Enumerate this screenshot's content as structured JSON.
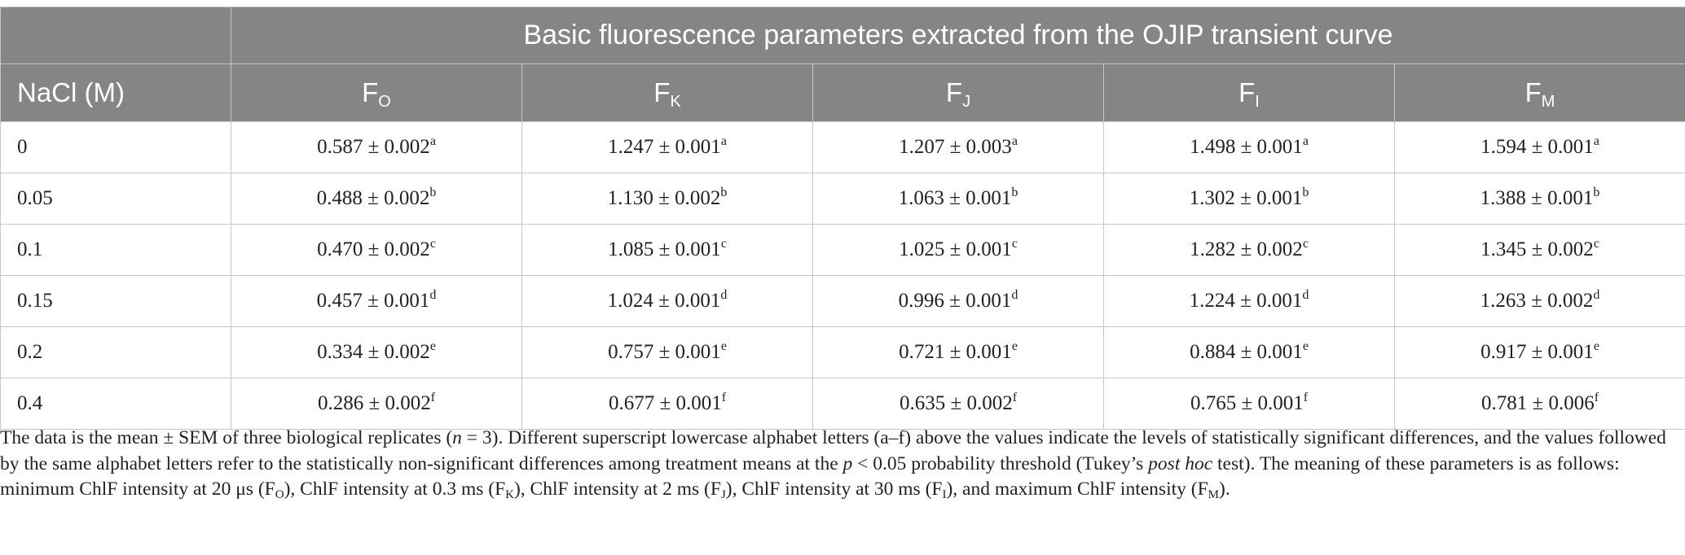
{
  "table": {
    "group_header": "Basic fluorescence parameters extracted from the OJIP transient curve",
    "columns": [
      {
        "base": "NaCl (M)",
        "sub": ""
      },
      {
        "base": "F",
        "sub": "O"
      },
      {
        "base": "F",
        "sub": "K"
      },
      {
        "base": "F",
        "sub": "J"
      },
      {
        "base": "F",
        "sub": "I"
      },
      {
        "base": "F",
        "sub": "M"
      }
    ],
    "rows": [
      {
        "nacl": "0",
        "cells": [
          {
            "v": "0.587 ± 0.002",
            "s": "a"
          },
          {
            "v": "1.247 ± 0.001",
            "s": "a"
          },
          {
            "v": "1.207 ± 0.003",
            "s": "a"
          },
          {
            "v": "1.498 ± 0.001",
            "s": "a"
          },
          {
            "v": "1.594 ± 0.001",
            "s": "a"
          }
        ]
      },
      {
        "nacl": "0.05",
        "cells": [
          {
            "v": "0.488 ± 0.002",
            "s": "b"
          },
          {
            "v": "1.130 ± 0.002",
            "s": "b"
          },
          {
            "v": "1.063 ± 0.001",
            "s": "b"
          },
          {
            "v": "1.302 ± 0.001",
            "s": "b"
          },
          {
            "v": "1.388 ± 0.001",
            "s": "b"
          }
        ]
      },
      {
        "nacl": "0.1",
        "cells": [
          {
            "v": "0.470 ± 0.002",
            "s": "c"
          },
          {
            "v": "1.085 ± 0.001",
            "s": "c"
          },
          {
            "v": "1.025 ± 0.001",
            "s": "c"
          },
          {
            "v": "1.282 ± 0.002",
            "s": "c"
          },
          {
            "v": "1.345 ± 0.002",
            "s": "c"
          }
        ]
      },
      {
        "nacl": "0.15",
        "cells": [
          {
            "v": "0.457 ± 0.001",
            "s": "d"
          },
          {
            "v": "1.024 ± 0.001",
            "s": "d"
          },
          {
            "v": "0.996 ± 0.001",
            "s": "d"
          },
          {
            "v": "1.224 ± 0.001",
            "s": "d"
          },
          {
            "v": "1.263 ± 0.002",
            "s": "d"
          }
        ]
      },
      {
        "nacl": "0.2",
        "cells": [
          {
            "v": "0.334 ± 0.002",
            "s": "e"
          },
          {
            "v": "0.757 ± 0.001",
            "s": "e"
          },
          {
            "v": "0.721 ± 0.001",
            "s": "e"
          },
          {
            "v": "0.884 ± 0.001",
            "s": "e"
          },
          {
            "v": "0.917 ± 0.001",
            "s": "e"
          }
        ]
      },
      {
        "nacl": "0.4",
        "cells": [
          {
            "v": "0.286 ± 0.002",
            "s": "f"
          },
          {
            "v": "0.677 ± 0.001",
            "s": "f"
          },
          {
            "v": "0.635 ± 0.002",
            "s": "f"
          },
          {
            "v": "0.765 ± 0.001",
            "s": "f"
          },
          {
            "v": "0.781 ± 0.006",
            "s": "f"
          }
        ]
      }
    ]
  },
  "footnote": {
    "p1": "The data is the mean ± SEM of three biological replicates (",
    "n_label": "n",
    "p2": " = 3). Different superscript lowercase alphabet letters (a–f) above the values indicate the levels of statistically significant differences, and the values followed by the same alphabet letters refer to the statistically non-significant differences among treatment means at the ",
    "p_label": "p",
    "p3": " < 0.05 probability threshold (Tukey’s ",
    "posthoc": "post hoc",
    "p4": " test). The meaning of these parameters is as follows: minimum ChlF intensity at 20 μs (F",
    "s1": "O",
    "p5": "), ChlF intensity at 0.3 ms (F",
    "s2": "K",
    "p6": "), ChlF intensity at 2 ms (F",
    "s3": "J",
    "p7": "), ChlF intensity at 30 ms (F",
    "s4": "I",
    "p8": "), and maximum ChlF intensity (F",
    "s5": "M",
    "p9": ")."
  }
}
